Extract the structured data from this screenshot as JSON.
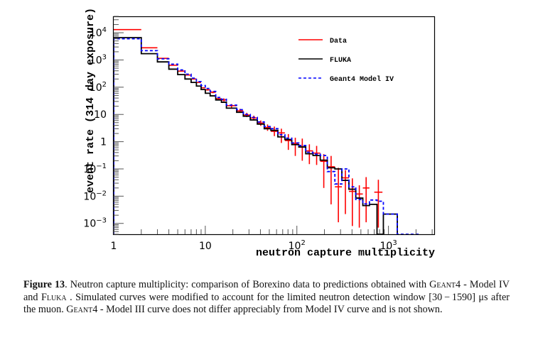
{
  "chart_data": {
    "type": "histogram-step",
    "title": "",
    "xlabel": "neutron capture multiplicity",
    "ylabel": "event rate (314 day exposure)",
    "xscale": "log",
    "yscale": "log",
    "xlim": [
      1,
      3160
    ],
    "ylim": [
      0.0004,
      40000
    ],
    "x_tick_labels": [
      {
        "value": 1,
        "label": "1"
      },
      {
        "value": 10,
        "label": "10"
      },
      {
        "value": 100,
        "label": "10",
        "sup": "2"
      },
      {
        "value": 1000,
        "label": "10",
        "sup": "3"
      }
    ],
    "y_tick_labels": [
      {
        "value": 10000,
        "label": "10",
        "sup": "4"
      },
      {
        "value": 1000,
        "label": "10",
        "sup": "3"
      },
      {
        "value": 100,
        "label": "10",
        "sup": "2"
      },
      {
        "value": 10,
        "label": "10",
        "sup": ""
      },
      {
        "value": 1,
        "label": "1",
        "sup": ""
      },
      {
        "value": 0.1,
        "label": "10",
        "sup": "−1"
      },
      {
        "value": 0.01,
        "label": "10",
        "sup": "−2"
      },
      {
        "value": 0.001,
        "label": "10",
        "sup": "−3"
      }
    ],
    "legend": {
      "placement": "top-right",
      "entries": [
        {
          "name": "Data",
          "color": "#ff0000",
          "style": "solid"
        },
        {
          "name": "FLUKA",
          "color": "#000000",
          "style": "solid"
        },
        {
          "name": "Geant4 Model IV",
          "color": "#0000ff",
          "style": "dashed"
        }
      ]
    },
    "series": [
      {
        "name": "Data",
        "color": "#ff0000",
        "kind": "points-with-errors",
        "bins": [
          {
            "x0": 1,
            "x1": 2,
            "y": 13000,
            "lo": 13000,
            "hi": 13000
          },
          {
            "x0": 2,
            "x1": 3,
            "y": 2800,
            "lo": 2800,
            "hi": 2800
          },
          {
            "x0": 3,
            "x1": 4,
            "y": 1150,
            "lo": 1150,
            "hi": 1150
          },
          {
            "x0": 4,
            "x1": 5,
            "y": 640,
            "lo": 640,
            "hi": 640
          },
          {
            "x0": 5,
            "x1": 6,
            "y": 390,
            "lo": 390,
            "hi": 390
          },
          {
            "x0": 6,
            "x1": 7,
            "y": 280,
            "lo": 280,
            "hi": 280
          },
          {
            "x0": 7,
            "x1": 8,
            "y": 200,
            "lo": 200,
            "hi": 200
          },
          {
            "x0": 8,
            "x1": 9,
            "y": 150,
            "lo": 150,
            "hi": 150
          },
          {
            "x0": 9,
            "x1": 10,
            "y": 95,
            "lo": 95,
            "hi": 95
          },
          {
            "x0": 10,
            "x1": 11.3,
            "y": 80,
            "lo": 75,
            "hi": 86
          },
          {
            "x0": 11.3,
            "x1": 13,
            "y": 65,
            "lo": 60,
            "hi": 71
          },
          {
            "x0": 13,
            "x1": 15,
            "y": 38,
            "lo": 34,
            "hi": 43
          },
          {
            "x0": 15,
            "x1": 17,
            "y": 34,
            "lo": 30,
            "hi": 39
          },
          {
            "x0": 17,
            "x1": 22,
            "y": 21,
            "lo": 18,
            "hi": 24
          },
          {
            "x0": 22,
            "x1": 26,
            "y": 13.5,
            "lo": 11.5,
            "hi": 16
          },
          {
            "x0": 26,
            "x1": 31,
            "y": 9.5,
            "lo": 8,
            "hi": 11.5
          },
          {
            "x0": 31,
            "x1": 37,
            "y": 7.4,
            "lo": 6,
            "hi": 9
          },
          {
            "x0": 37,
            "x1": 44,
            "y": 4.8,
            "lo": 3.8,
            "hi": 6
          },
          {
            "x0": 44,
            "x1": 52,
            "y": 3.3,
            "lo": 2.5,
            "hi": 4.3
          },
          {
            "x0": 52,
            "x1": 62,
            "y": 2.4,
            "lo": 1.6,
            "hi": 3.6
          },
          {
            "x0": 62,
            "x1": 74,
            "y": 2.1,
            "lo": 0.9,
            "hi": 3.0
          },
          {
            "x0": 74,
            "x1": 88,
            "y": 1.1,
            "lo": 0.5,
            "hi": 1.9
          },
          {
            "x0": 88,
            "x1": 105,
            "y": 0.86,
            "lo": 0.3,
            "hi": 1.4
          },
          {
            "x0": 105,
            "x1": 125,
            "y": 0.63,
            "lo": 0.2,
            "hi": 1.3
          },
          {
            "x0": 125,
            "x1": 150,
            "y": 0.46,
            "lo": 0.15,
            "hi": 0.8
          },
          {
            "x0": 150,
            "x1": 180,
            "y": 0.38,
            "lo": 0.14,
            "hi": 0.7
          },
          {
            "x0": 180,
            "x1": 215,
            "y": 0.19,
            "lo": 0.02,
            "hi": 0.35
          },
          {
            "x0": 215,
            "x1": 260,
            "y": 0.12,
            "lo": 0.005,
            "hi": 0.3
          },
          {
            "x0": 260,
            "x1": 310,
            "y": 0.022,
            "lo": 0.0011,
            "hi": 0.11
          },
          {
            "x0": 310,
            "x1": 370,
            "y": 0.047,
            "lo": 0.0022,
            "hi": 0.09
          },
          {
            "x0": 370,
            "x1": 440,
            "y": 0.015,
            "lo": 0.0008,
            "hi": 0.045
          },
          {
            "x0": 440,
            "x1": 525,
            "y": 0.012,
            "lo": 0.0007,
            "hi": 0.025
          },
          {
            "x0": 525,
            "x1": 620,
            "y": 0.02,
            "lo": 0.0011,
            "hi": 0.05
          },
          {
            "x0": 700,
            "x1": 860,
            "y": 0.014,
            "lo": 0.0007,
            "hi": 0.04
          }
        ]
      },
      {
        "name": "FLUKA",
        "color": "#000000",
        "kind": "step",
        "bins": [
          {
            "x0": 1,
            "x1": 2,
            "y": 6600
          },
          {
            "x0": 2,
            "x1": 3,
            "y": 1700
          },
          {
            "x0": 3,
            "x1": 4,
            "y": 850
          },
          {
            "x0": 4,
            "x1": 5,
            "y": 460
          },
          {
            "x0": 5,
            "x1": 6,
            "y": 290
          },
          {
            "x0": 6,
            "x1": 7,
            "y": 200
          },
          {
            "x0": 7,
            "x1": 8,
            "y": 150
          },
          {
            "x0": 8,
            "x1": 9,
            "y": 110
          },
          {
            "x0": 9,
            "x1": 10,
            "y": 82
          },
          {
            "x0": 10,
            "x1": 11.3,
            "y": 60
          },
          {
            "x0": 11.3,
            "x1": 13,
            "y": 48
          },
          {
            "x0": 13,
            "x1": 15,
            "y": 34
          },
          {
            "x0": 15,
            "x1": 17,
            "y": 28
          },
          {
            "x0": 17,
            "x1": 22,
            "y": 17
          },
          {
            "x0": 22,
            "x1": 26,
            "y": 12
          },
          {
            "x0": 26,
            "x1": 31,
            "y": 8.6
          },
          {
            "x0": 31,
            "x1": 37,
            "y": 6.3
          },
          {
            "x0": 37,
            "x1": 44,
            "y": 4.4
          },
          {
            "x0": 44,
            "x1": 52,
            "y": 3.0
          },
          {
            "x0": 52,
            "x1": 62,
            "y": 2.6
          },
          {
            "x0": 62,
            "x1": 74,
            "y": 1.5
          },
          {
            "x0": 74,
            "x1": 88,
            "y": 1.2
          },
          {
            "x0": 88,
            "x1": 105,
            "y": 0.78
          },
          {
            "x0": 105,
            "x1": 125,
            "y": 0.64
          },
          {
            "x0": 125,
            "x1": 150,
            "y": 0.36
          },
          {
            "x0": 150,
            "x1": 180,
            "y": 0.31
          },
          {
            "x0": 180,
            "x1": 215,
            "y": 0.21
          },
          {
            "x0": 215,
            "x1": 260,
            "y": 0.11
          },
          {
            "x0": 260,
            "x1": 310,
            "y": 0.1
          },
          {
            "x0": 310,
            "x1": 370,
            "y": 0.038
          },
          {
            "x0": 370,
            "x1": 440,
            "y": 0.018
          },
          {
            "x0": 440,
            "x1": 525,
            "y": 0.0085
          },
          {
            "x0": 525,
            "x1": 620,
            "y": 0.0045
          },
          {
            "x0": 620,
            "x1": 750,
            "y": 0.005
          },
          {
            "x0": 750,
            "x1": 880,
            "y": 0.0004
          },
          {
            "x0": 880,
            "x1": 1250,
            "y": 0.0022
          }
        ]
      },
      {
        "name": "Geant4 Model IV",
        "color": "#0000ff",
        "kind": "step-dashed",
        "bins": [
          {
            "x0": 1,
            "x1": 2,
            "y": 6000
          },
          {
            "x0": 2,
            "x1": 3,
            "y": 2200
          },
          {
            "x0": 3,
            "x1": 4,
            "y": 1100
          },
          {
            "x0": 4,
            "x1": 5,
            "y": 700
          },
          {
            "x0": 5,
            "x1": 6,
            "y": 430
          },
          {
            "x0": 6,
            "x1": 7,
            "y": 300
          },
          {
            "x0": 7,
            "x1": 8,
            "y": 215
          },
          {
            "x0": 8,
            "x1": 9,
            "y": 160
          },
          {
            "x0": 9,
            "x1": 10,
            "y": 115
          },
          {
            "x0": 10,
            "x1": 11.3,
            "y": 90
          },
          {
            "x0": 11.3,
            "x1": 13,
            "y": 70
          },
          {
            "x0": 13,
            "x1": 15,
            "y": 42
          },
          {
            "x0": 15,
            "x1": 17,
            "y": 36
          },
          {
            "x0": 17,
            "x1": 22,
            "y": 22
          },
          {
            "x0": 22,
            "x1": 26,
            "y": 15
          },
          {
            "x0": 26,
            "x1": 31,
            "y": 10
          },
          {
            "x0": 31,
            "x1": 37,
            "y": 7.8
          },
          {
            "x0": 37,
            "x1": 44,
            "y": 5.3
          },
          {
            "x0": 44,
            "x1": 52,
            "y": 3.6
          },
          {
            "x0": 52,
            "x1": 62,
            "y": 3.0
          },
          {
            "x0": 62,
            "x1": 74,
            "y": 1.8
          },
          {
            "x0": 74,
            "x1": 88,
            "y": 1.35
          },
          {
            "x0": 88,
            "x1": 105,
            "y": 0.9
          },
          {
            "x0": 105,
            "x1": 125,
            "y": 0.72
          },
          {
            "x0": 125,
            "x1": 150,
            "y": 0.41
          },
          {
            "x0": 150,
            "x1": 180,
            "y": 0.35
          },
          {
            "x0": 180,
            "x1": 215,
            "y": 0.31
          },
          {
            "x0": 215,
            "x1": 260,
            "y": 0.08
          },
          {
            "x0": 260,
            "x1": 310,
            "y": 0.028
          },
          {
            "x0": 310,
            "x1": 370,
            "y": 0.1
          },
          {
            "x0": 370,
            "x1": 440,
            "y": 0.022
          },
          {
            "x0": 440,
            "x1": 525,
            "y": 0.0075
          },
          {
            "x0": 525,
            "x1": 620,
            "y": 0.0052
          },
          {
            "x0": 620,
            "x1": 750,
            "y": 0.0072
          },
          {
            "x0": 750,
            "x1": 880,
            "y": 0.0065
          },
          {
            "x0": 880,
            "x1": 1250,
            "y": 0.0022
          },
          {
            "x0": 1250,
            "x1": 2200,
            "y": 0.0004
          }
        ]
      }
    ]
  },
  "caption": {
    "label": "Figure 13",
    "part1": ". Neutron capture multiplicity: comparison of Borexino data to predictions obtained with ",
    "geant_a": "Geant4",
    "part2": " - Model IV and ",
    "fluka": "Fluka",
    "part3": " . Simulated curves were modified to account for the limited neutron detection window [30 − 1590] μs after the muon. ",
    "geant_b": "Geant4",
    "part4": " - Model III curve does not differ appreciably from Model IV curve and is not shown."
  }
}
